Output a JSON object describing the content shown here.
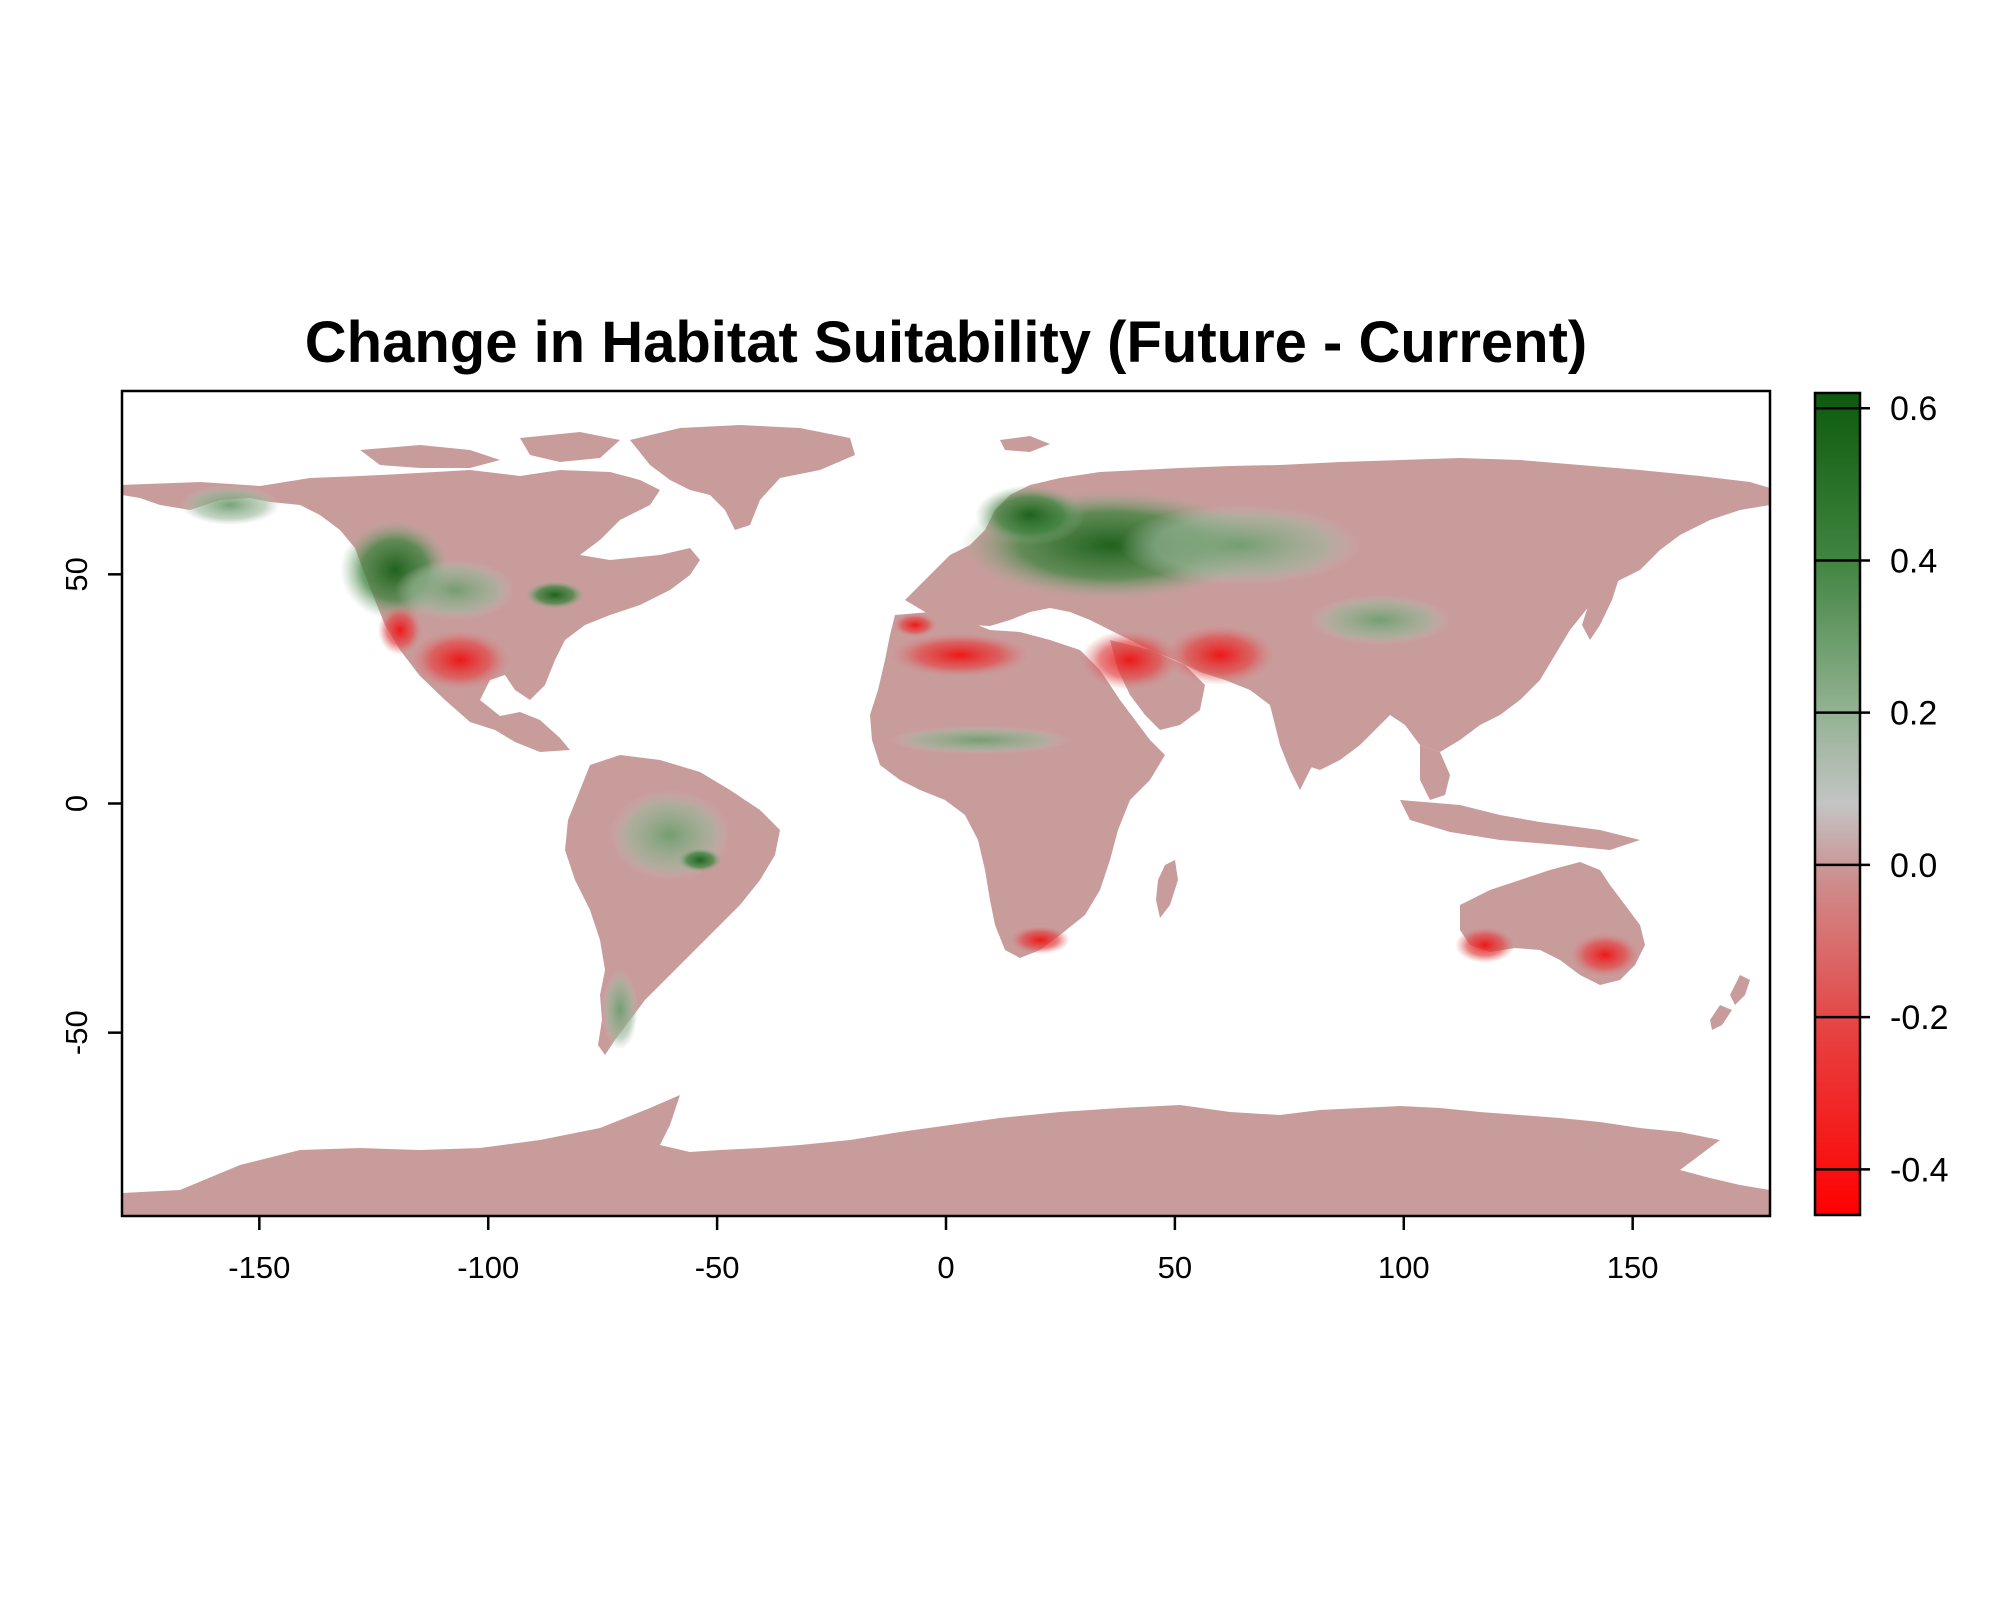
{
  "title": "Change in Habitat Suitability (Future - Current)",
  "map": {
    "type": "raster-map",
    "xlim": [
      -180,
      180
    ],
    "ylim": [
      -90,
      90
    ],
    "x_ticks": [
      -150,
      -100,
      -50,
      0,
      50,
      100,
      150
    ],
    "x_tick_labels": [
      "-150",
      "-100",
      "-50",
      "0",
      "50",
      "100",
      "150"
    ],
    "y_ticks": [
      50,
      0,
      -50
    ],
    "y_tick_labels": [
      "50",
      "0",
      "-50"
    ],
    "land_color": "#c99c9c",
    "background_color": "#ffffff"
  },
  "colorbar": {
    "range": [
      -0.46,
      0.62
    ],
    "ticks": [
      0.6,
      0.4,
      0.2,
      0.0,
      -0.2,
      -0.4
    ],
    "tick_labels": [
      "0.6",
      "0.4",
      "0.2",
      "0.0",
      "-0.2",
      "-0.4"
    ],
    "colors": {
      "max": "#0d5a0d",
      "high": "#2f7a2f",
      "mid_high": "#8fb08f",
      "zero_above": "#c0c0c0",
      "zero": "#c99c9c",
      "mid_low": "#e05050",
      "min": "#ff0000"
    }
  }
}
